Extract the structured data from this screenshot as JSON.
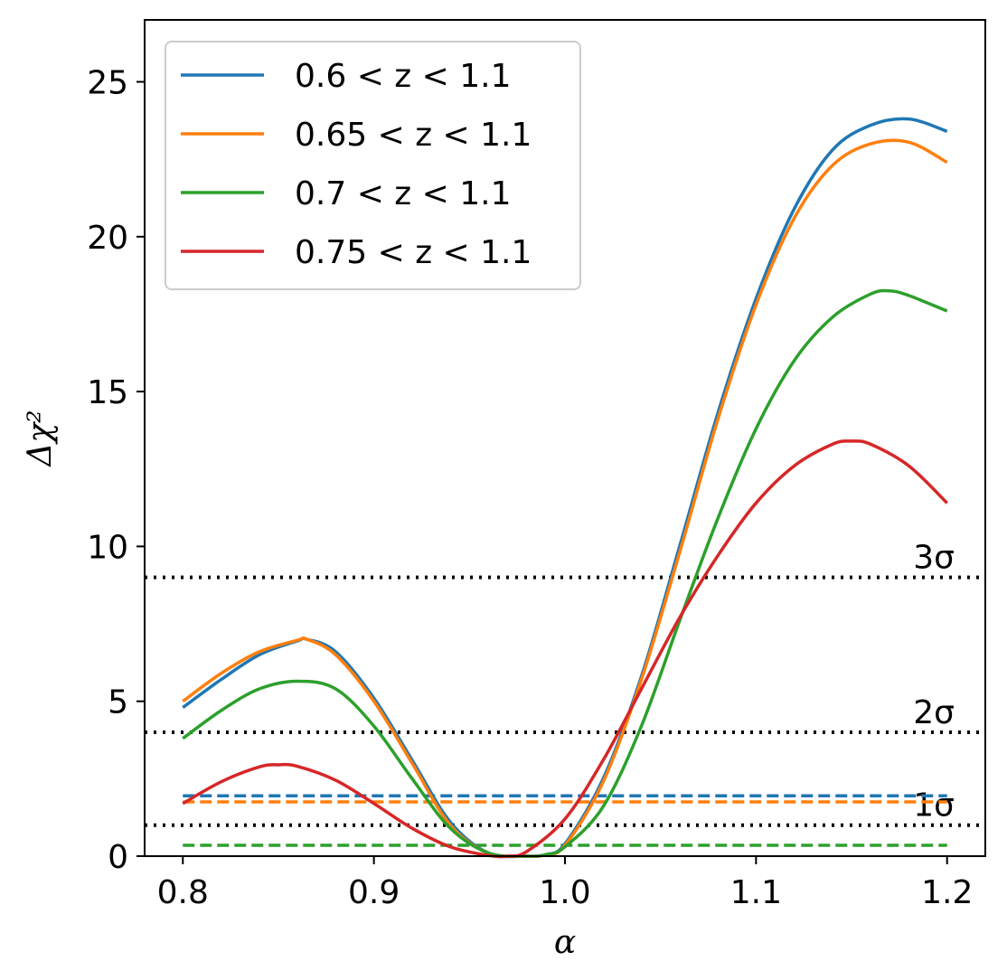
{
  "chart_data": {
    "type": "line",
    "xlabel": "α",
    "ylabel": "Δχ²",
    "xlim": [
      0.78,
      1.22
    ],
    "ylim": [
      0,
      27
    ],
    "xticks": [
      0.8,
      0.9,
      1.0,
      1.1,
      1.2
    ],
    "xtick_labels": [
      "0.8",
      "0.9",
      "1.0",
      "1.1",
      "1.2"
    ],
    "yticks": [
      0,
      5,
      10,
      15,
      20,
      25
    ],
    "ytick_labels": [
      "0",
      "5",
      "10",
      "15",
      "20",
      "25"
    ],
    "grid": false,
    "legend_position": "top-left",
    "series": [
      {
        "name": "0.6 < z < 1.1",
        "color": "#1f77b4",
        "x": [
          0.8,
          0.82,
          0.84,
          0.86,
          0.865,
          0.88,
          0.9,
          0.92,
          0.94,
          0.96,
          0.98,
          0.99,
          1.0,
          1.02,
          1.04,
          1.06,
          1.08,
          1.1,
          1.12,
          1.14,
          1.16,
          1.18,
          1.2
        ],
        "y": [
          4.8,
          5.7,
          6.5,
          6.95,
          7.0,
          6.6,
          5.1,
          3.1,
          1.1,
          0.1,
          0.0,
          0.05,
          0.4,
          2.5,
          5.8,
          10.0,
          14.3,
          18.0,
          20.9,
          22.8,
          23.6,
          23.8,
          23.4
        ],
        "reference_level": 1.95
      },
      {
        "name": "0.65 < z < 1.1",
        "color": "#ff7f0e",
        "x": [
          0.8,
          0.82,
          0.84,
          0.86,
          0.865,
          0.88,
          0.9,
          0.92,
          0.94,
          0.96,
          0.98,
          0.99,
          1.0,
          1.02,
          1.04,
          1.06,
          1.08,
          1.1,
          1.12,
          1.14,
          1.16,
          1.18,
          1.2
        ],
        "y": [
          5.0,
          5.9,
          6.6,
          6.97,
          7.0,
          6.5,
          5.0,
          3.0,
          1.0,
          0.1,
          0.0,
          0.05,
          0.35,
          2.4,
          5.7,
          9.8,
          14.1,
          17.8,
          20.6,
          22.3,
          23.0,
          23.05,
          22.4
        ],
        "reference_level": 1.75
      },
      {
        "name": "0.7 < z < 1.1",
        "color": "#2ca02c",
        "x": [
          0.8,
          0.82,
          0.84,
          0.86,
          0.88,
          0.9,
          0.92,
          0.94,
          0.96,
          0.98,
          0.99,
          1.0,
          1.02,
          1.04,
          1.06,
          1.08,
          1.1,
          1.12,
          1.14,
          1.16,
          1.17,
          1.18,
          1.2
        ],
        "y": [
          3.8,
          4.7,
          5.4,
          5.65,
          5.4,
          4.2,
          2.5,
          0.9,
          0.1,
          0.0,
          0.05,
          0.3,
          1.6,
          4.2,
          7.6,
          10.9,
          13.8,
          16.0,
          17.4,
          18.15,
          18.25,
          18.1,
          17.6
        ],
        "reference_level": 0.35
      },
      {
        "name": "0.75 < z < 1.1",
        "color": "#d62728",
        "x": [
          0.8,
          0.82,
          0.84,
          0.85,
          0.86,
          0.88,
          0.9,
          0.92,
          0.94,
          0.96,
          0.97,
          0.98,
          1.0,
          1.02,
          1.04,
          1.06,
          1.08,
          1.1,
          1.12,
          1.14,
          1.15,
          1.16,
          1.18,
          1.2
        ],
        "y": [
          1.7,
          2.4,
          2.88,
          2.95,
          2.9,
          2.45,
          1.7,
          0.9,
          0.3,
          0.02,
          0.0,
          0.15,
          1.2,
          3.1,
          5.4,
          7.7,
          9.7,
          11.4,
          12.6,
          13.3,
          13.4,
          13.3,
          12.6,
          11.4
        ],
        "reference_level": null
      }
    ],
    "reference_lines": [
      {
        "y": 1,
        "label": "1σ",
        "style": "dotted",
        "color": "#000000"
      },
      {
        "y": 4,
        "label": "2σ",
        "style": "dotted",
        "color": "#000000"
      },
      {
        "y": 9,
        "label": "3σ",
        "style": "dotted",
        "color": "#000000"
      }
    ]
  }
}
